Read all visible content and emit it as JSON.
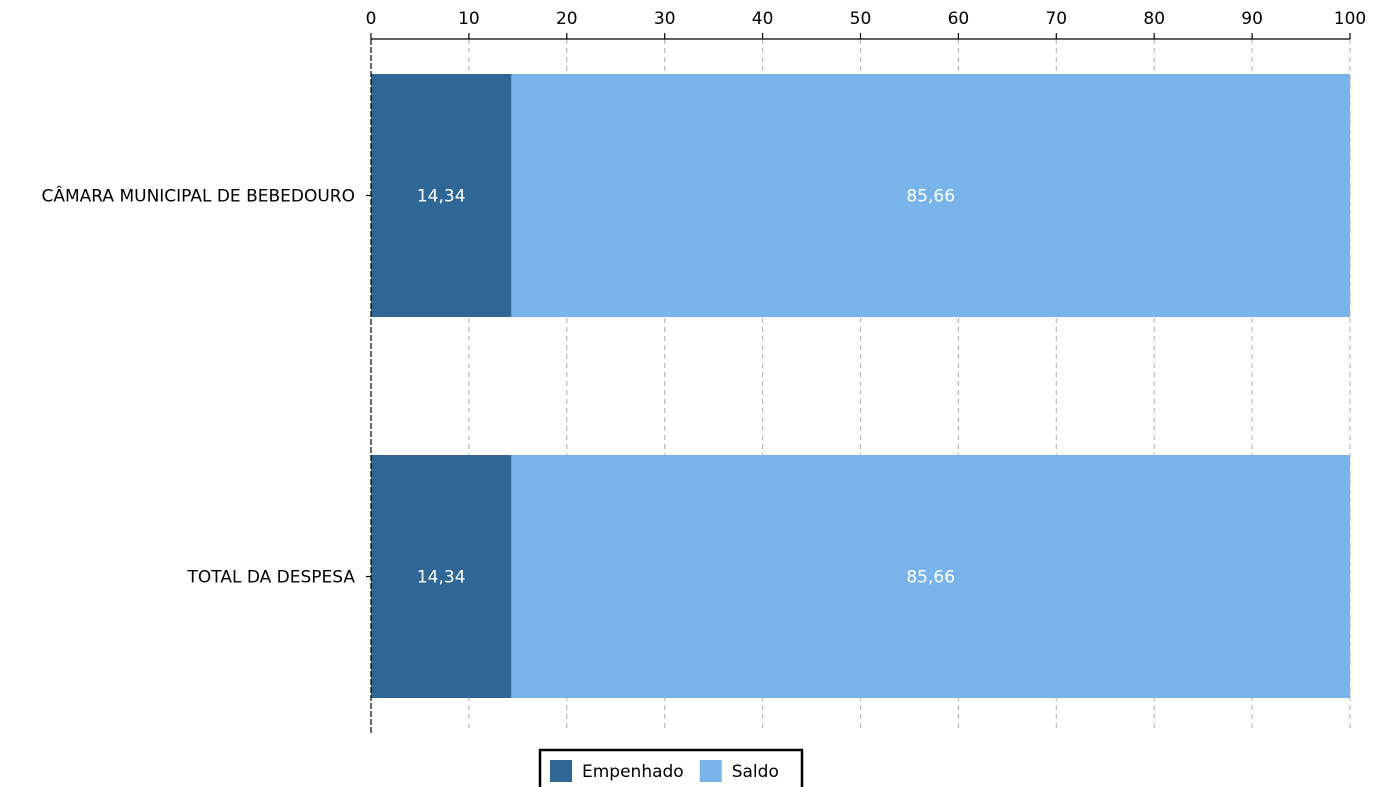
{
  "chart_data": {
    "type": "bar",
    "orientation": "horizontal",
    "stacked": true,
    "categories": [
      "CÂMARA MUNICIPAL DE BEBEDOURO",
      "TOTAL DA DESPESA"
    ],
    "series": [
      {
        "name": "Empenhado",
        "values": [
          14.34,
          14.34
        ],
        "labels": [
          "14,34",
          "14,34"
        ],
        "color": "#2e6796"
      },
      {
        "name": "Saldo",
        "values": [
          85.66,
          85.66
        ],
        "labels": [
          "85,66",
          "85,66"
        ],
        "color": "#78b4ea"
      }
    ],
    "xlim": [
      0,
      100
    ],
    "x_ticks": [
      0,
      10,
      20,
      30,
      40,
      50,
      60,
      70,
      80,
      90,
      100
    ],
    "x_tick_labels": [
      "0",
      "10",
      "20",
      "30",
      "40",
      "50",
      "60",
      "70",
      "80",
      "90",
      "100"
    ],
    "x_axis_position": "top",
    "grid": "vertical dashed",
    "grid_color": "#bbbbbb",
    "legend_position": "bottom-center",
    "title": "",
    "xlabel": "",
    "ylabel": ""
  }
}
